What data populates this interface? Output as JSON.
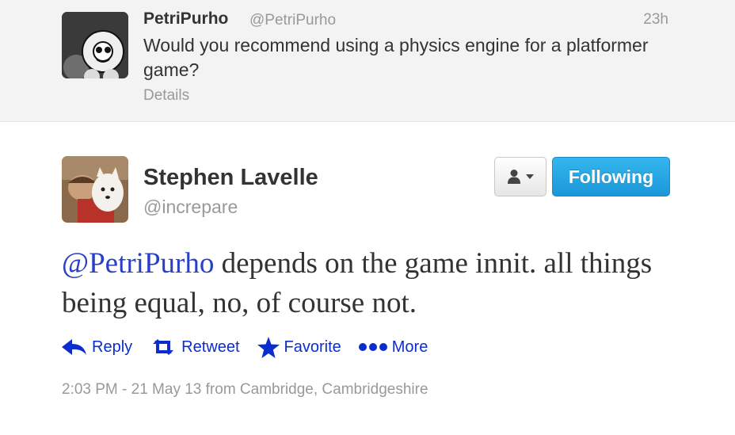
{
  "parent_tweet": {
    "name": "PetriPurho",
    "handle": "@PetriPurho",
    "time": "23h",
    "text": "Would you recommend using a physics engine for a platformer game?",
    "details_label": "Details"
  },
  "tweet": {
    "name": "Stephen Lavelle",
    "handle": "@increpare",
    "follow_label": "Following",
    "mention": "@PetriPurho",
    "text": " depends on the game innit. all things being equal, no, of course not.",
    "actions": {
      "reply": "Reply",
      "retweet": "Retweet",
      "favorite": "Favorite",
      "more": "More"
    },
    "meta": "2:03 PM - 21 May 13 from Cambridge, Cambridgeshire"
  },
  "icons": {
    "user_menu": "person-icon",
    "reply": "reply-arrow-icon",
    "retweet": "retweet-icon",
    "favorite": "star-icon",
    "more": "dots-icon"
  },
  "colors": {
    "link": "#0b2dcd",
    "mention": "#2a3fc7",
    "follow_button": "#1b97d8",
    "muted_text": "#999999",
    "parent_background": "#f3f3f3"
  }
}
